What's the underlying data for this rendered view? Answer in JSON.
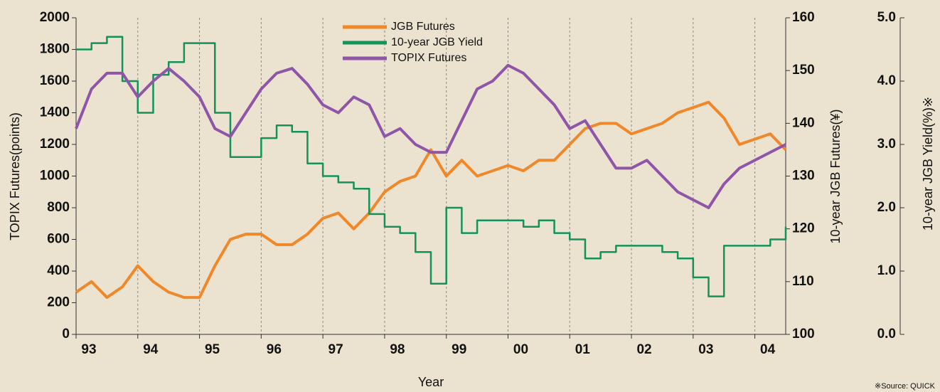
{
  "chart_data": {
    "type": "line",
    "xlabel": "Year",
    "ylabel": "TOPIX Futures(points)",
    "y2label": "10-year JGB Futures(¥)",
    "y3label": "10-year JGB Yield(%)※",
    "source": "※Source: QUICK",
    "grid": true,
    "x": [
      1993,
      1993.25,
      1993.5,
      1993.75,
      1994,
      1994.25,
      1994.5,
      1994.75,
      1995,
      1995.25,
      1995.5,
      1995.75,
      1996,
      1996.25,
      1996.5,
      1996.75,
      1997,
      1997.25,
      1997.5,
      1997.75,
      1998,
      1998.25,
      1998.5,
      1998.75,
      1999,
      1999.25,
      1999.5,
      1999.75,
      2000,
      2000.25,
      2000.5,
      2000.75,
      2001,
      2001.25,
      2001.5,
      2001.75,
      2002,
      2002.25,
      2002.5,
      2002.75,
      2003,
      2003.25,
      2003.5,
      2003.75,
      2004,
      2004.25,
      2004.5
    ],
    "xlim": [
      1993,
      2004.5
    ],
    "xticks": [
      {
        "value": 1993,
        "label": "93"
      },
      {
        "value": 1994,
        "label": "94"
      },
      {
        "value": 1995,
        "label": "95"
      },
      {
        "value": 1996,
        "label": "96"
      },
      {
        "value": 1997,
        "label": "97"
      },
      {
        "value": 1998,
        "label": "98"
      },
      {
        "value": 1999,
        "label": "99"
      },
      {
        "value": 2000,
        "label": "00"
      },
      {
        "value": 2001,
        "label": "01"
      },
      {
        "value": 2002,
        "label": "02"
      },
      {
        "value": 2003,
        "label": "03"
      },
      {
        "value": 2004,
        "label": "04"
      }
    ],
    "ylim": [
      0,
      2000
    ],
    "yticks": [
      0,
      200,
      400,
      600,
      800,
      1000,
      1200,
      1400,
      1600,
      1800,
      2000
    ],
    "y2lim": [
      100,
      160
    ],
    "y2ticks": [
      100,
      110,
      120,
      130,
      140,
      150,
      160
    ],
    "y3lim": [
      0,
      5
    ],
    "y3ticks": [
      {
        "value": 0,
        "label": "0.0"
      },
      {
        "value": 1,
        "label": "1.0"
      },
      {
        "value": 2,
        "label": "2.0"
      },
      {
        "value": 3,
        "label": "3.0"
      },
      {
        "value": 4,
        "label": "4.0"
      },
      {
        "value": 5,
        "label": "5.0"
      }
    ],
    "series": [
      {
        "name": "JGB Futures",
        "color": "#f0882a",
        "axis": "y2",
        "values": [
          108,
          110,
          107,
          109,
          113,
          110,
          108,
          107,
          107,
          113,
          118,
          119,
          119,
          117,
          117,
          119,
          122,
          123,
          120,
          123,
          127,
          129,
          130,
          135,
          130,
          133,
          130,
          131,
          132,
          131,
          133,
          133,
          136,
          139,
          140,
          140,
          138,
          139,
          140,
          142,
          143,
          144,
          141,
          136,
          137,
          138,
          135
        ]
      },
      {
        "name": "10-year JGB Yield",
        "color": "#13925a",
        "axis": "y3",
        "step": true,
        "values": [
          4.5,
          4.6,
          4.7,
          4.0,
          3.5,
          4.1,
          4.3,
          4.6,
          4.6,
          3.5,
          2.8,
          2.8,
          3.1,
          3.3,
          3.2,
          2.7,
          2.5,
          2.4,
          2.3,
          1.9,
          1.7,
          1.6,
          1.3,
          0.8,
          2.0,
          1.6,
          1.8,
          1.8,
          1.8,
          1.7,
          1.8,
          1.6,
          1.5,
          1.2,
          1.3,
          1.4,
          1.4,
          1.4,
          1.3,
          1.2,
          0.9,
          0.6,
          1.4,
          1.4,
          1.4,
          1.5,
          1.7
        ]
      },
      {
        "name": "TOPIX Futures",
        "color": "#8e55a8",
        "axis": "y",
        "values": [
          1300,
          1550,
          1650,
          1650,
          1500,
          1600,
          1680,
          1600,
          1500,
          1300,
          1250,
          1400,
          1550,
          1650,
          1680,
          1580,
          1450,
          1400,
          1500,
          1450,
          1250,
          1300,
          1200,
          1150,
          1150,
          1350,
          1550,
          1600,
          1700,
          1650,
          1550,
          1450,
          1300,
          1350,
          1200,
          1050,
          1050,
          1100,
          1000,
          900,
          850,
          800,
          950,
          1050,
          1100,
          1150,
          1200
        ]
      }
    ]
  }
}
